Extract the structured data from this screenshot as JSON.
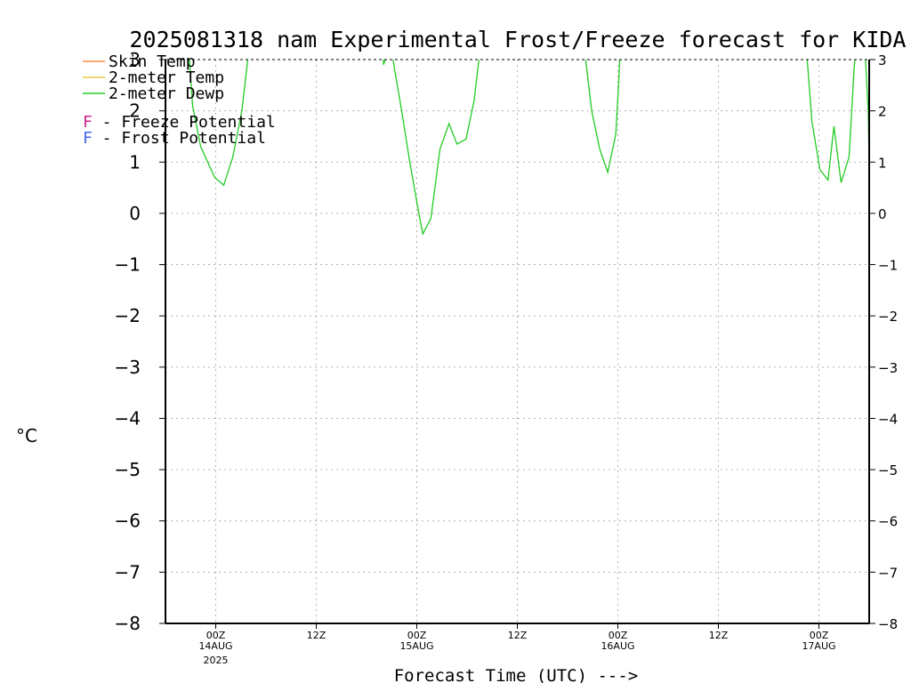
{
  "chart_data": {
    "type": "line",
    "title": "2025081318 nam Experimental Frost/Freeze forecast for KIDA",
    "ylabel": "°C",
    "xlabel": "Forecast Time (UTC) --->",
    "ylim": [
      -8,
      3
    ],
    "xlim_hours": [
      -5,
      65
    ],
    "grid": true,
    "legend_position": "top-left",
    "y_ticks": [
      3,
      2,
      1,
      0,
      -1,
      -2,
      -3,
      -4,
      -5,
      -6,
      -7,
      -8
    ],
    "y_tick_labels": [
      "3",
      "2",
      "1",
      "0",
      "−1",
      "−2",
      "−3",
      "−4",
      "−5",
      "−6",
      "−7",
      "−8"
    ],
    "x_ticks": [
      {
        "hour": 0,
        "label": "00Z",
        "sub": "14AUG",
        "sub2": "2025"
      },
      {
        "hour": 10,
        "label": "12Z",
        "sub": "",
        "sub2": ""
      },
      {
        "hour": 20,
        "label": "00Z",
        "sub": "15AUG",
        "sub2": ""
      },
      {
        "hour": 30,
        "label": "12Z",
        "sub": "",
        "sub2": ""
      },
      {
        "hour": 40,
        "label": "00Z",
        "sub": "16AUG",
        "sub2": ""
      },
      {
        "hour": 50,
        "label": "12Z",
        "sub": "",
        "sub2": ""
      },
      {
        "hour": 60,
        "label": "00Z",
        "sub": "17AUG",
        "sub2": ""
      }
    ],
    "legend": [
      {
        "label": "Skin Temp",
        "color": "#ff8c3a"
      },
      {
        "label": "2-meter Temp",
        "color": "#e8c840"
      },
      {
        "label": "2-meter Dewp",
        "color": "#22cc22"
      }
    ],
    "legend_notes": [
      {
        "marker": "F",
        "text": " - Freeze Potential",
        "color": "#cc2288"
      },
      {
        "marker": "F",
        "text": " - Frost Potential",
        "color": "#4466ee"
      }
    ],
    "series": [
      {
        "name": "2-meter Dewp",
        "color": "#22cc22",
        "points": [
          [
            -2.8,
            3.5
          ],
          [
            -2.3,
            2.1
          ],
          [
            -1.5,
            1.3
          ],
          [
            -0.1,
            0.7
          ],
          [
            0.8,
            0.55
          ],
          [
            1.7,
            1.1
          ],
          [
            2.6,
            2.0
          ],
          [
            3.3,
            3.2
          ],
          [
            3.5,
            3.5
          ],
          [
            16.5,
            3.5
          ],
          [
            16.7,
            2.9
          ],
          [
            17.0,
            3.1
          ],
          [
            17.3,
            3.5
          ],
          [
            17.8,
            2.8
          ],
          [
            18.5,
            2.0
          ],
          [
            19.3,
            1.0
          ],
          [
            20.2,
            0.0
          ],
          [
            20.6,
            -0.4
          ],
          [
            21.4,
            -0.1
          ],
          [
            22.3,
            1.25
          ],
          [
            23.2,
            1.75
          ],
          [
            24.0,
            1.35
          ],
          [
            24.9,
            1.45
          ],
          [
            25.7,
            2.2
          ],
          [
            26.3,
            3.2
          ],
          [
            26.6,
            3.5
          ],
          [
            36.5,
            3.5
          ],
          [
            36.8,
            3.0
          ],
          [
            37.4,
            2.0
          ],
          [
            38.2,
            1.25
          ],
          [
            39.0,
            0.8
          ],
          [
            39.8,
            1.55
          ],
          [
            40.1,
            2.6
          ],
          [
            40.3,
            3.5
          ],
          [
            58.5,
            3.5
          ],
          [
            58.8,
            3.1
          ],
          [
            59.3,
            1.8
          ],
          [
            60.1,
            0.85
          ],
          [
            60.9,
            0.65
          ],
          [
            61.5,
            1.7
          ],
          [
            62.2,
            0.6
          ],
          [
            63.0,
            1.1
          ],
          [
            63.5,
            2.8
          ],
          [
            63.8,
            3.5
          ],
          [
            64.5,
            3.5
          ],
          [
            64.9,
            2.0
          ],
          [
            65.0,
            1.0
          ]
        ]
      }
    ]
  }
}
